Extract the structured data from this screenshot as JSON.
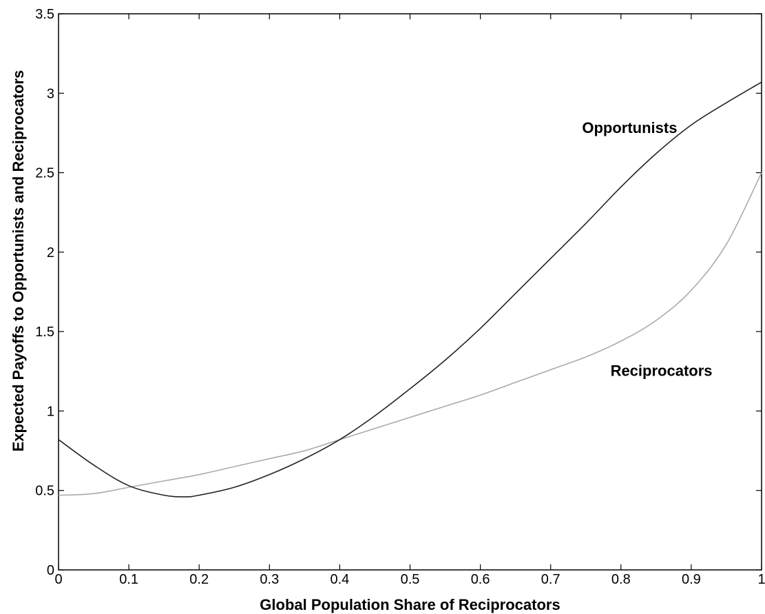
{
  "chart_data": {
    "type": "line",
    "title": "",
    "xlabel": "Global Population Share of Reciprocators",
    "ylabel": "Expected Payoffs to Opportunists and Reciprocators",
    "xlim": [
      0,
      1
    ],
    "ylim": [
      0,
      3.5
    ],
    "x_ticks": [
      0,
      0.1,
      0.2,
      0.3,
      0.4,
      0.5,
      0.6,
      0.7,
      0.8,
      0.9,
      1
    ],
    "x_tick_labels": [
      "0",
      "0.1",
      "0.2",
      "0.3",
      "0.4",
      "0.5",
      "0.6",
      "0.7",
      "0.8",
      "0.9",
      "1"
    ],
    "y_ticks": [
      0,
      0.5,
      1,
      1.5,
      2,
      2.5,
      3,
      3.5
    ],
    "y_tick_labels": [
      "0",
      "0.5",
      "1",
      "1.5",
      "2",
      "2.5",
      "3",
      "3.5"
    ],
    "grid": false,
    "legend": "none",
    "series": [
      {
        "name": "Opportunists",
        "color": "#222222",
        "x": [
          0,
          0.05,
          0.1,
          0.15,
          0.18,
          0.2,
          0.25,
          0.3,
          0.35,
          0.4,
          0.45,
          0.5,
          0.55,
          0.6,
          0.65,
          0.7,
          0.75,
          0.8,
          0.85,
          0.9,
          0.95,
          1
        ],
        "y": [
          0.82,
          0.66,
          0.53,
          0.47,
          0.46,
          0.47,
          0.52,
          0.6,
          0.7,
          0.82,
          0.97,
          1.14,
          1.32,
          1.52,
          1.74,
          1.96,
          2.18,
          2.41,
          2.62,
          2.8,
          2.94,
          3.07
        ]
      },
      {
        "name": "Reciprocators",
        "color": "#aaaaaa",
        "x": [
          0,
          0.05,
          0.1,
          0.15,
          0.2,
          0.25,
          0.3,
          0.35,
          0.4,
          0.45,
          0.5,
          0.55,
          0.6,
          0.65,
          0.7,
          0.75,
          0.8,
          0.85,
          0.9,
          0.95,
          1
        ],
        "y": [
          0.47,
          0.48,
          0.52,
          0.56,
          0.6,
          0.65,
          0.7,
          0.75,
          0.82,
          0.89,
          0.96,
          1.03,
          1.1,
          1.18,
          1.26,
          1.34,
          1.44,
          1.57,
          1.76,
          2.05,
          2.5
        ]
      }
    ],
    "annotations": [
      {
        "text": "Opportunists",
        "x": 0.88,
        "y": 2.75
      },
      {
        "text": "Reciprocators",
        "x": 0.93,
        "y": 1.22
      }
    ]
  }
}
